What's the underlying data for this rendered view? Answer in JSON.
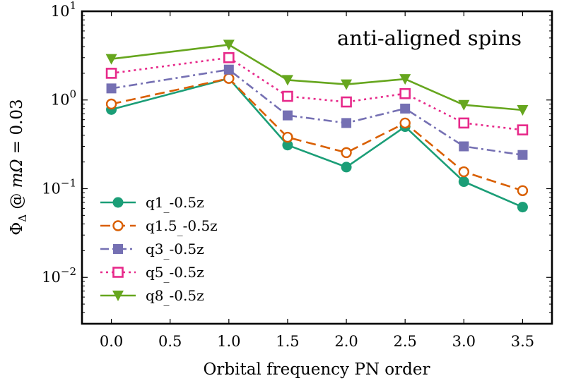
{
  "chart_data": {
    "type": "line",
    "title": "",
    "annotation": "anti-aligned spins",
    "xlabel": "Orbital frequency PN order",
    "ylabel": "Φ_Δ @ mΩ = 0.03",
    "yscale": "log",
    "xlim": [
      -0.25,
      3.75
    ],
    "ylim": [
      0.003,
      10
    ],
    "x_ticks": [
      0.0,
      0.5,
      1.0,
      1.5,
      2.0,
      2.5,
      3.0,
      3.5
    ],
    "x_tick_labels": [
      "0.0",
      "0.5",
      "1.0",
      "1.5",
      "2.0",
      "2.5",
      "3.0",
      "3.5"
    ],
    "y_ticks": [
      {
        "value": 10,
        "base": "10",
        "exp": "1"
      },
      {
        "value": 1,
        "base": "10",
        "exp": "0"
      },
      {
        "value": 0.1,
        "base": "10",
        "exp": "−1"
      },
      {
        "value": 0.01,
        "base": "10",
        "exp": "−2"
      }
    ],
    "x": [
      0.0,
      1.0,
      1.5,
      2.0,
      2.5,
      3.0,
      3.5
    ],
    "legend_position": "lower-left",
    "series": [
      {
        "name": "q1_-0.5z",
        "label_main": "q1",
        "label_rest": "-0.5z",
        "color": "#1b9e77",
        "linestyle": "solid",
        "marker": "circle-filled",
        "values": [
          0.78,
          1.75,
          0.31,
          0.175,
          0.5,
          0.12,
          0.062
        ]
      },
      {
        "name": "q1.5_-0.5z",
        "label_main": "q1.5",
        "label_rest": "-0.5z",
        "color": "#d95f02",
        "linestyle": "dashed",
        "marker": "circle-open",
        "values": [
          0.9,
          1.75,
          0.38,
          0.255,
          0.55,
          0.155,
          0.095
        ]
      },
      {
        "name": "q3_-0.5z",
        "label_main": "q3",
        "label_rest": "-0.5z",
        "color": "#7570b3",
        "linestyle": "dashdot",
        "marker": "square-filled",
        "values": [
          1.35,
          2.2,
          0.67,
          0.55,
          0.8,
          0.3,
          0.24
        ]
      },
      {
        "name": "q5_-0.5z",
        "label_main": "q5",
        "label_rest": "-0.5z",
        "color": "#e7298a",
        "linestyle": "dotted",
        "marker": "square-open",
        "values": [
          2.0,
          3.0,
          1.1,
          0.95,
          1.18,
          0.55,
          0.46
        ]
      },
      {
        "name": "q8_-0.5z",
        "label_main": "q8",
        "label_rest": "-0.5z",
        "color": "#66a61e",
        "linestyle": "solid",
        "marker": "triangle-down",
        "values": [
          2.9,
          4.2,
          1.68,
          1.5,
          1.72,
          0.88,
          0.77
        ]
      }
    ]
  }
}
